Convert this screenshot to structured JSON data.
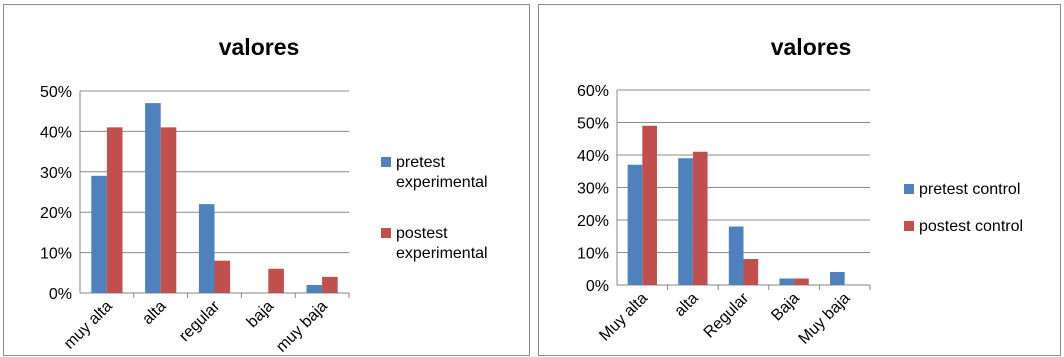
{
  "charts": [
    {
      "chart_data": {
        "type": "bar",
        "title": "valores",
        "categories": [
          "muy alta",
          "alta",
          "regular",
          "baja",
          "muy baja"
        ],
        "series": [
          {
            "name": "pretest experimental",
            "values": [
              29,
              47,
              22,
              0,
              2
            ],
            "color": "#4f81bd"
          },
          {
            "name": "postest experimental",
            "values": [
              41,
              41,
              8,
              6,
              4
            ],
            "color": "#c0504d"
          }
        ],
        "y_ticks": [
          "0%",
          "10%",
          "20%",
          "30%",
          "40%",
          "50%"
        ],
        "ylim": [
          0,
          50
        ],
        "unit": "%",
        "grid": true,
        "legend_position": "right"
      }
    },
    {
      "chart_data": {
        "type": "bar",
        "title": "valores",
        "categories": [
          "Muy alta",
          "alta",
          "Regular",
          "Baja",
          "Muy baja"
        ],
        "series": [
          {
            "name": "pretest control",
            "values": [
              37,
              39,
              18,
              2,
              4
            ],
            "color": "#4f81bd"
          },
          {
            "name": "postest control",
            "values": [
              49,
              41,
              8,
              2,
              0
            ],
            "color": "#c0504d"
          }
        ],
        "y_ticks": [
          "0%",
          "10%",
          "20%",
          "30%",
          "40%",
          "50%",
          "60%"
        ],
        "ylim": [
          0,
          60
        ],
        "unit": "%",
        "grid": true,
        "legend_position": "right"
      }
    }
  ]
}
